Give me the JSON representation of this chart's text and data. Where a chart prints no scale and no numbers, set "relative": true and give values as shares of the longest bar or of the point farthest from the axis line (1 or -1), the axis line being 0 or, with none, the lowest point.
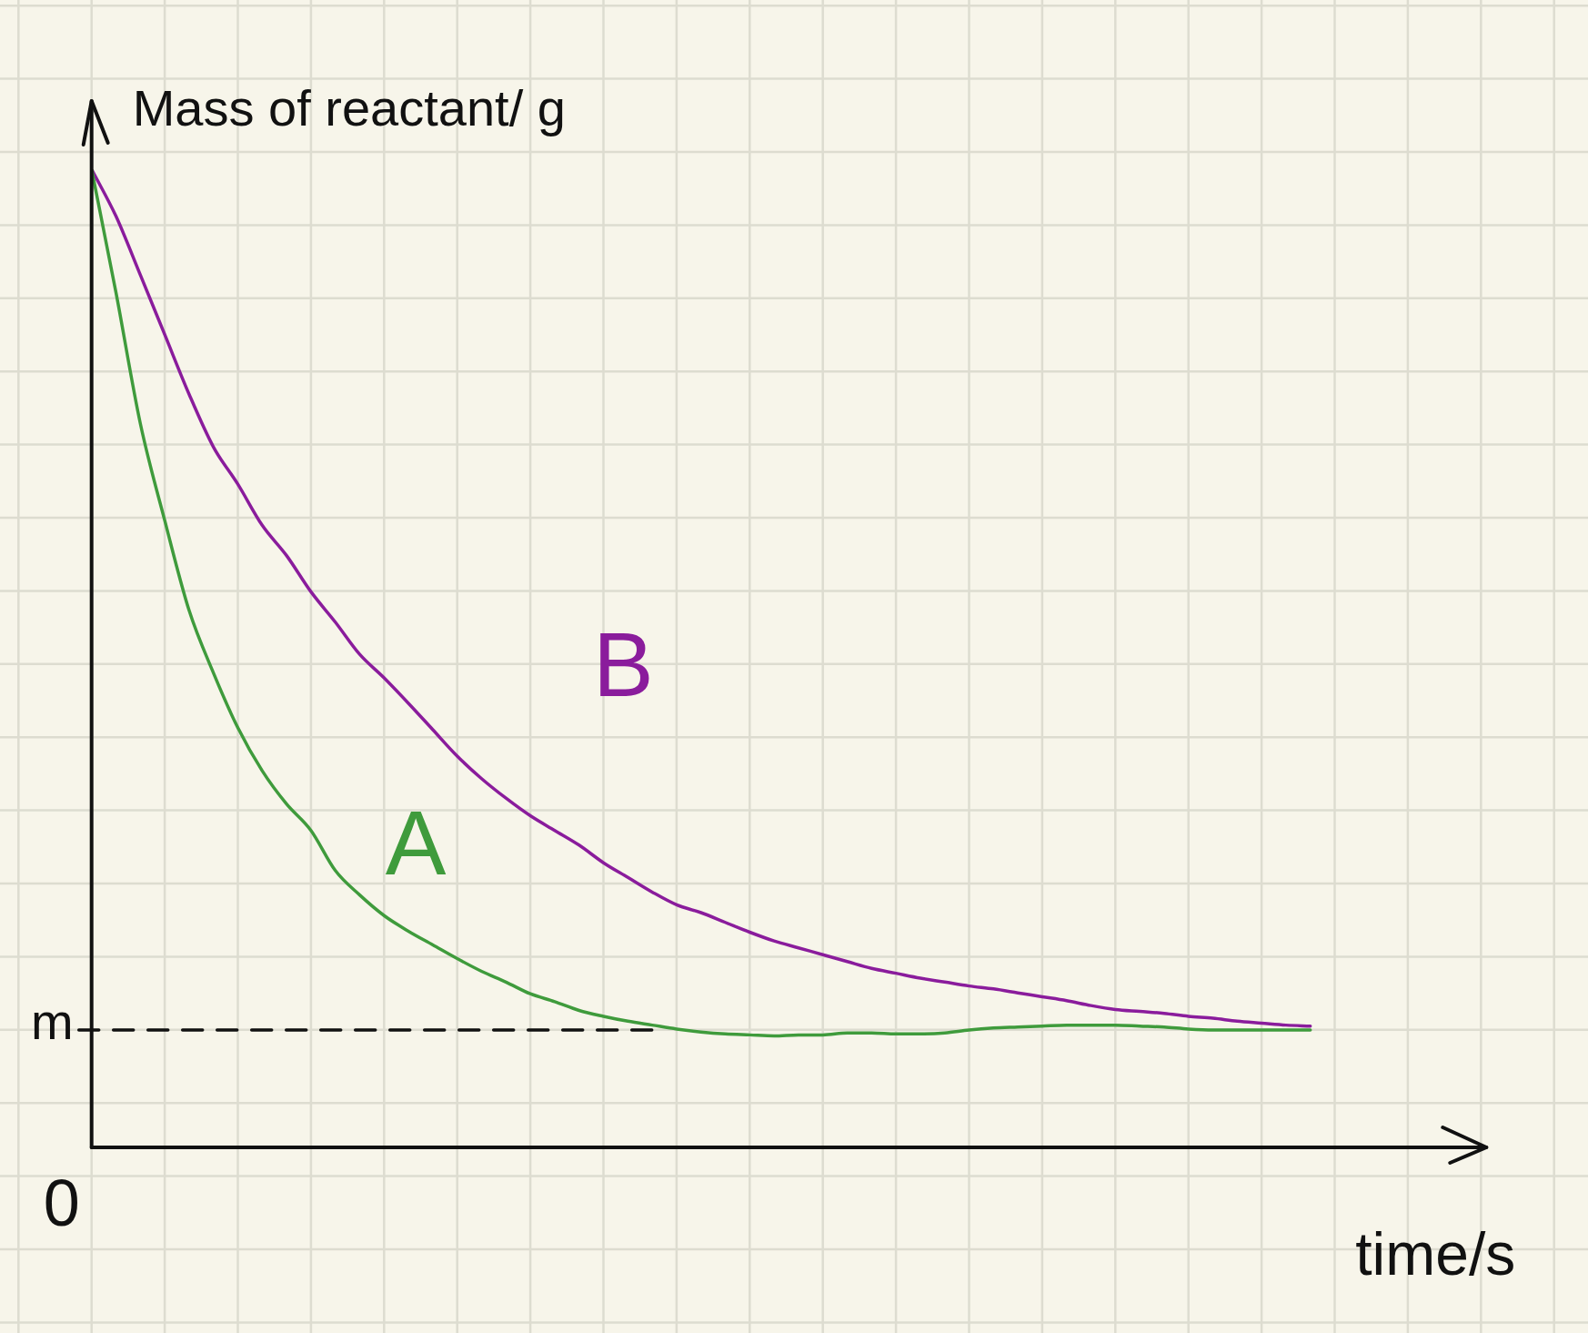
{
  "chart_data": {
    "type": "line",
    "ylabel": "Mass of reactant/ g",
    "xlabel": "time/s",
    "relative": true,
    "grid": true,
    "categories": [
      null,
      null,
      null,
      null,
      null,
      null,
      null,
      null,
      null,
      null,
      null,
      null,
      null,
      null,
      null,
      null,
      null,
      null,
      null,
      null,
      null,
      null,
      null,
      null,
      null,
      null,
      null,
      null,
      null,
      null,
      null,
      null,
      null,
      null,
      null,
      null,
      null,
      null,
      null,
      null,
      null,
      null,
      null,
      null,
      null,
      null,
      null,
      null,
      null,
      null,
      null,
      null,
      null,
      null,
      null,
      null,
      null,
      null
    ],
    "series": [
      {
        "name": "A",
        "color": "#3f9b3c",
        "values": [
          1.0,
          0.874,
          0.74,
          0.641,
          0.549,
          0.485,
          0.429,
          0.385,
          0.351,
          0.324,
          0.283,
          0.258,
          0.237,
          0.221,
          0.207,
          0.193,
          0.18,
          0.169,
          0.157,
          0.149,
          0.14,
          0.134,
          0.129,
          0.125,
          0.121,
          0.118,
          0.116,
          0.115,
          0.114,
          0.115,
          0.115,
          0.117,
          0.117,
          0.116,
          0.116,
          0.117,
          0.12,
          0.122,
          0.123,
          0.124,
          0.125,
          0.125,
          0.125,
          0.124,
          0.123,
          0.121,
          0.12,
          0.12,
          0.12,
          0.12,
          0.12,
          null,
          null,
          null,
          null,
          null,
          null,
          null
        ]
      },
      {
        "name": "B",
        "color": "#8a1c9c",
        "values": [
          1.0,
          0.952,
          0.892,
          0.831,
          0.77,
          0.716,
          0.678,
          0.636,
          0.605,
          0.568,
          0.537,
          0.504,
          0.48,
          0.454,
          0.427,
          0.4,
          0.377,
          0.357,
          0.339,
          0.324,
          0.309,
          0.291,
          0.276,
          0.261,
          0.248,
          0.24,
          0.23,
          0.22,
          0.211,
          0.204,
          0.197,
          0.19,
          0.183,
          0.178,
          0.173,
          0.169,
          0.165,
          0.162,
          0.158,
          0.154,
          0.15,
          0.145,
          0.141,
          0.139,
          0.137,
          0.134,
          0.132,
          0.129,
          0.127,
          0.125,
          0.124,
          null,
          null,
          null,
          null,
          null,
          null,
          null
        ]
      }
    ],
    "ref_lines": [
      {
        "axis": "y",
        "value": 0.12,
        "label": "m",
        "color": "#111111",
        "line_style": "dashed"
      }
    ],
    "annotations": [
      "0"
    ]
  }
}
